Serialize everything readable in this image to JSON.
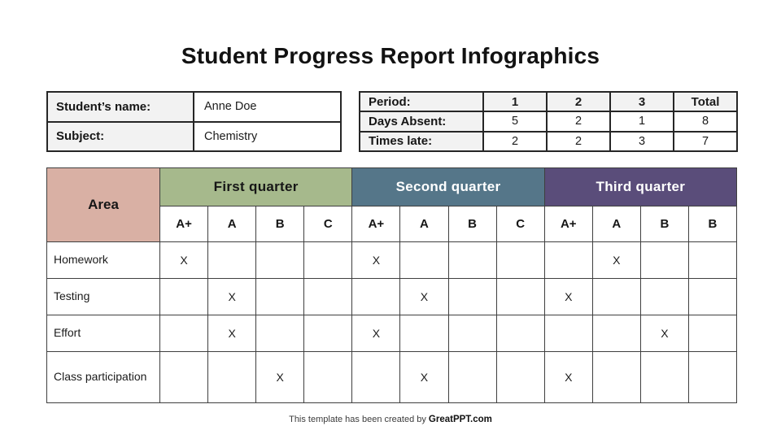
{
  "page": {
    "title": "Student Progress Report Infographics",
    "footer": {
      "text": "This template has been created by ",
      "brand": "GreatPPT.com"
    }
  },
  "student_info": {
    "rows": [
      {
        "label": "Student’s name:",
        "value": "Anne Doe"
      },
      {
        "label": "Subject:",
        "value": "Chemistry"
      }
    ]
  },
  "attendance": {
    "header": {
      "label": "Period:",
      "cols": [
        "1",
        "2",
        "3",
        "Total"
      ]
    },
    "rows": [
      {
        "label": "Days Absent:",
        "values": [
          "5",
          "2",
          "1",
          "8"
        ]
      },
      {
        "label": "Times late:",
        "values": [
          "2",
          "2",
          "3",
          "7"
        ]
      }
    ]
  },
  "progress_table": {
    "area_header": "Area",
    "area_color": "#d9b0a4",
    "mark_symbol": "X",
    "label_bg_color": "#f2f2f2",
    "quarters": [
      {
        "label": "First quarter",
        "color": "#a6b98c",
        "text_color": "#161616",
        "grades": [
          "A+",
          "A",
          "B",
          "C"
        ]
      },
      {
        "label": "Second quarter",
        "color": "#557689",
        "text_color": "#ffffff",
        "grades": [
          "A+",
          "A",
          "B",
          "C"
        ]
      },
      {
        "label": "Third quarter",
        "color": "#5a4d7a",
        "text_color": "#ffffff",
        "grades": [
          "A+",
          "A",
          "B",
          "B"
        ]
      }
    ],
    "rows": [
      {
        "label": "Homework",
        "marks": [
          0,
          4,
          9
        ]
      },
      {
        "label": "Testing",
        "marks": [
          1,
          5,
          8
        ]
      },
      {
        "label": "Effort",
        "marks": [
          1,
          4,
          10
        ]
      },
      {
        "label": "Class participation",
        "marks": [
          2,
          5,
          8
        ]
      }
    ]
  }
}
